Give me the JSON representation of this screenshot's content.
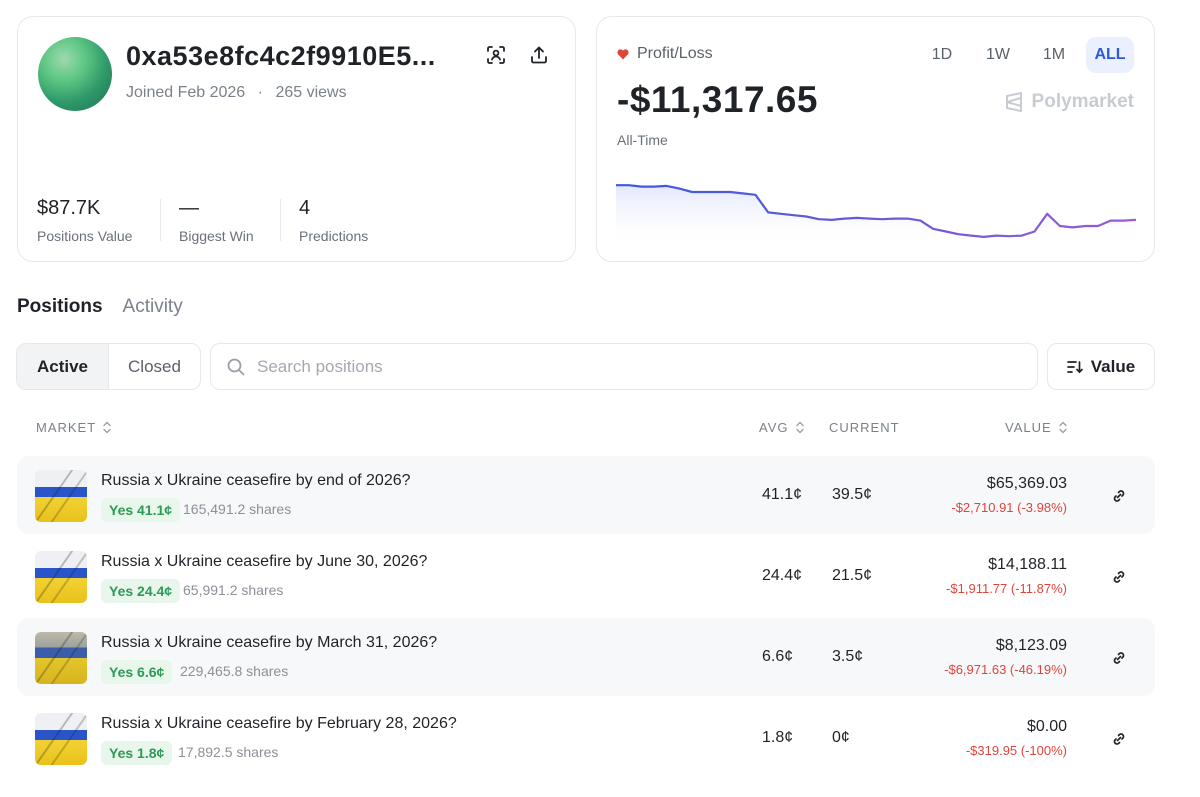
{
  "profile": {
    "address": "0xa53e8fc4c2f9910E5...",
    "joined": "Joined Feb 2026",
    "separator": "·",
    "views": "265 views",
    "stats": [
      {
        "value": "$87.7K",
        "label": "Positions Value"
      },
      {
        "value": "—",
        "label": "Biggest Win"
      },
      {
        "value": "4",
        "label": "Predictions"
      }
    ]
  },
  "pnl": {
    "label": "Profit/Loss",
    "value": "-$11,317.65",
    "period": "All-Time",
    "ranges": [
      "1D",
      "1W",
      "1M",
      "ALL"
    ],
    "active_range": "ALL",
    "brand": "Polymarket",
    "series": [
      0.82,
      0.82,
      0.8,
      0.8,
      0.81,
      0.77,
      0.72,
      0.72,
      0.72,
      0.72,
      0.7,
      0.68,
      0.42,
      0.4,
      0.38,
      0.36,
      0.32,
      0.31,
      0.33,
      0.34,
      0.33,
      0.32,
      0.33,
      0.33,
      0.3,
      0.18,
      0.14,
      0.1,
      0.08,
      0.06,
      0.08,
      0.07,
      0.08,
      0.14,
      0.4,
      0.22,
      0.2,
      0.22,
      0.22,
      0.3,
      0.3,
      0.31
    ]
  },
  "tabs": {
    "positions": "Positions",
    "activity": "Activity"
  },
  "filter": {
    "active": "Active",
    "closed": "Closed"
  },
  "search": {
    "placeholder": "Search positions",
    "value": ""
  },
  "sort": {
    "label": "Value"
  },
  "table": {
    "headers": {
      "market": "MARKET",
      "avg": "AVG",
      "current": "CURRENT",
      "value": "VALUE"
    },
    "rows": [
      {
        "title": "Russia x Ukraine ceasefire by end of 2026?",
        "outcome": "Yes 41.1¢",
        "shares": "165,491.2 shares",
        "avg": "41.1¢",
        "current": "39.5¢",
        "value": "$65,369.03",
        "change": "-$2,710.91 (-3.98%)"
      },
      {
        "title": "Russia x Ukraine ceasefire by June 30, 2026?",
        "outcome": "Yes 24.4¢",
        "shares": "65,991.2 shares",
        "avg": "24.4¢",
        "current": "21.5¢",
        "value": "$14,188.11",
        "change": "-$1,911.77 (-11.87%)"
      },
      {
        "title": "Russia x Ukraine ceasefire by March 31, 2026?",
        "outcome": "Yes 6.6¢",
        "shares": "229,465.8 shares",
        "avg": "6.6¢",
        "current": "3.5¢",
        "value": "$8,123.09",
        "change": "-$6,971.63 (-46.19%)"
      },
      {
        "title": "Russia x Ukraine ceasefire by February 28, 2026?",
        "outcome": "Yes 1.8¢",
        "shares": "17,892.5 shares",
        "avg": "1.8¢",
        "current": "0¢",
        "value": "$0.00",
        "change": "-$319.95 (-100%)"
      }
    ]
  },
  "colors": {
    "accent": "#2d59d6",
    "positive": "#2e9a55",
    "negative": "#e0453b"
  }
}
